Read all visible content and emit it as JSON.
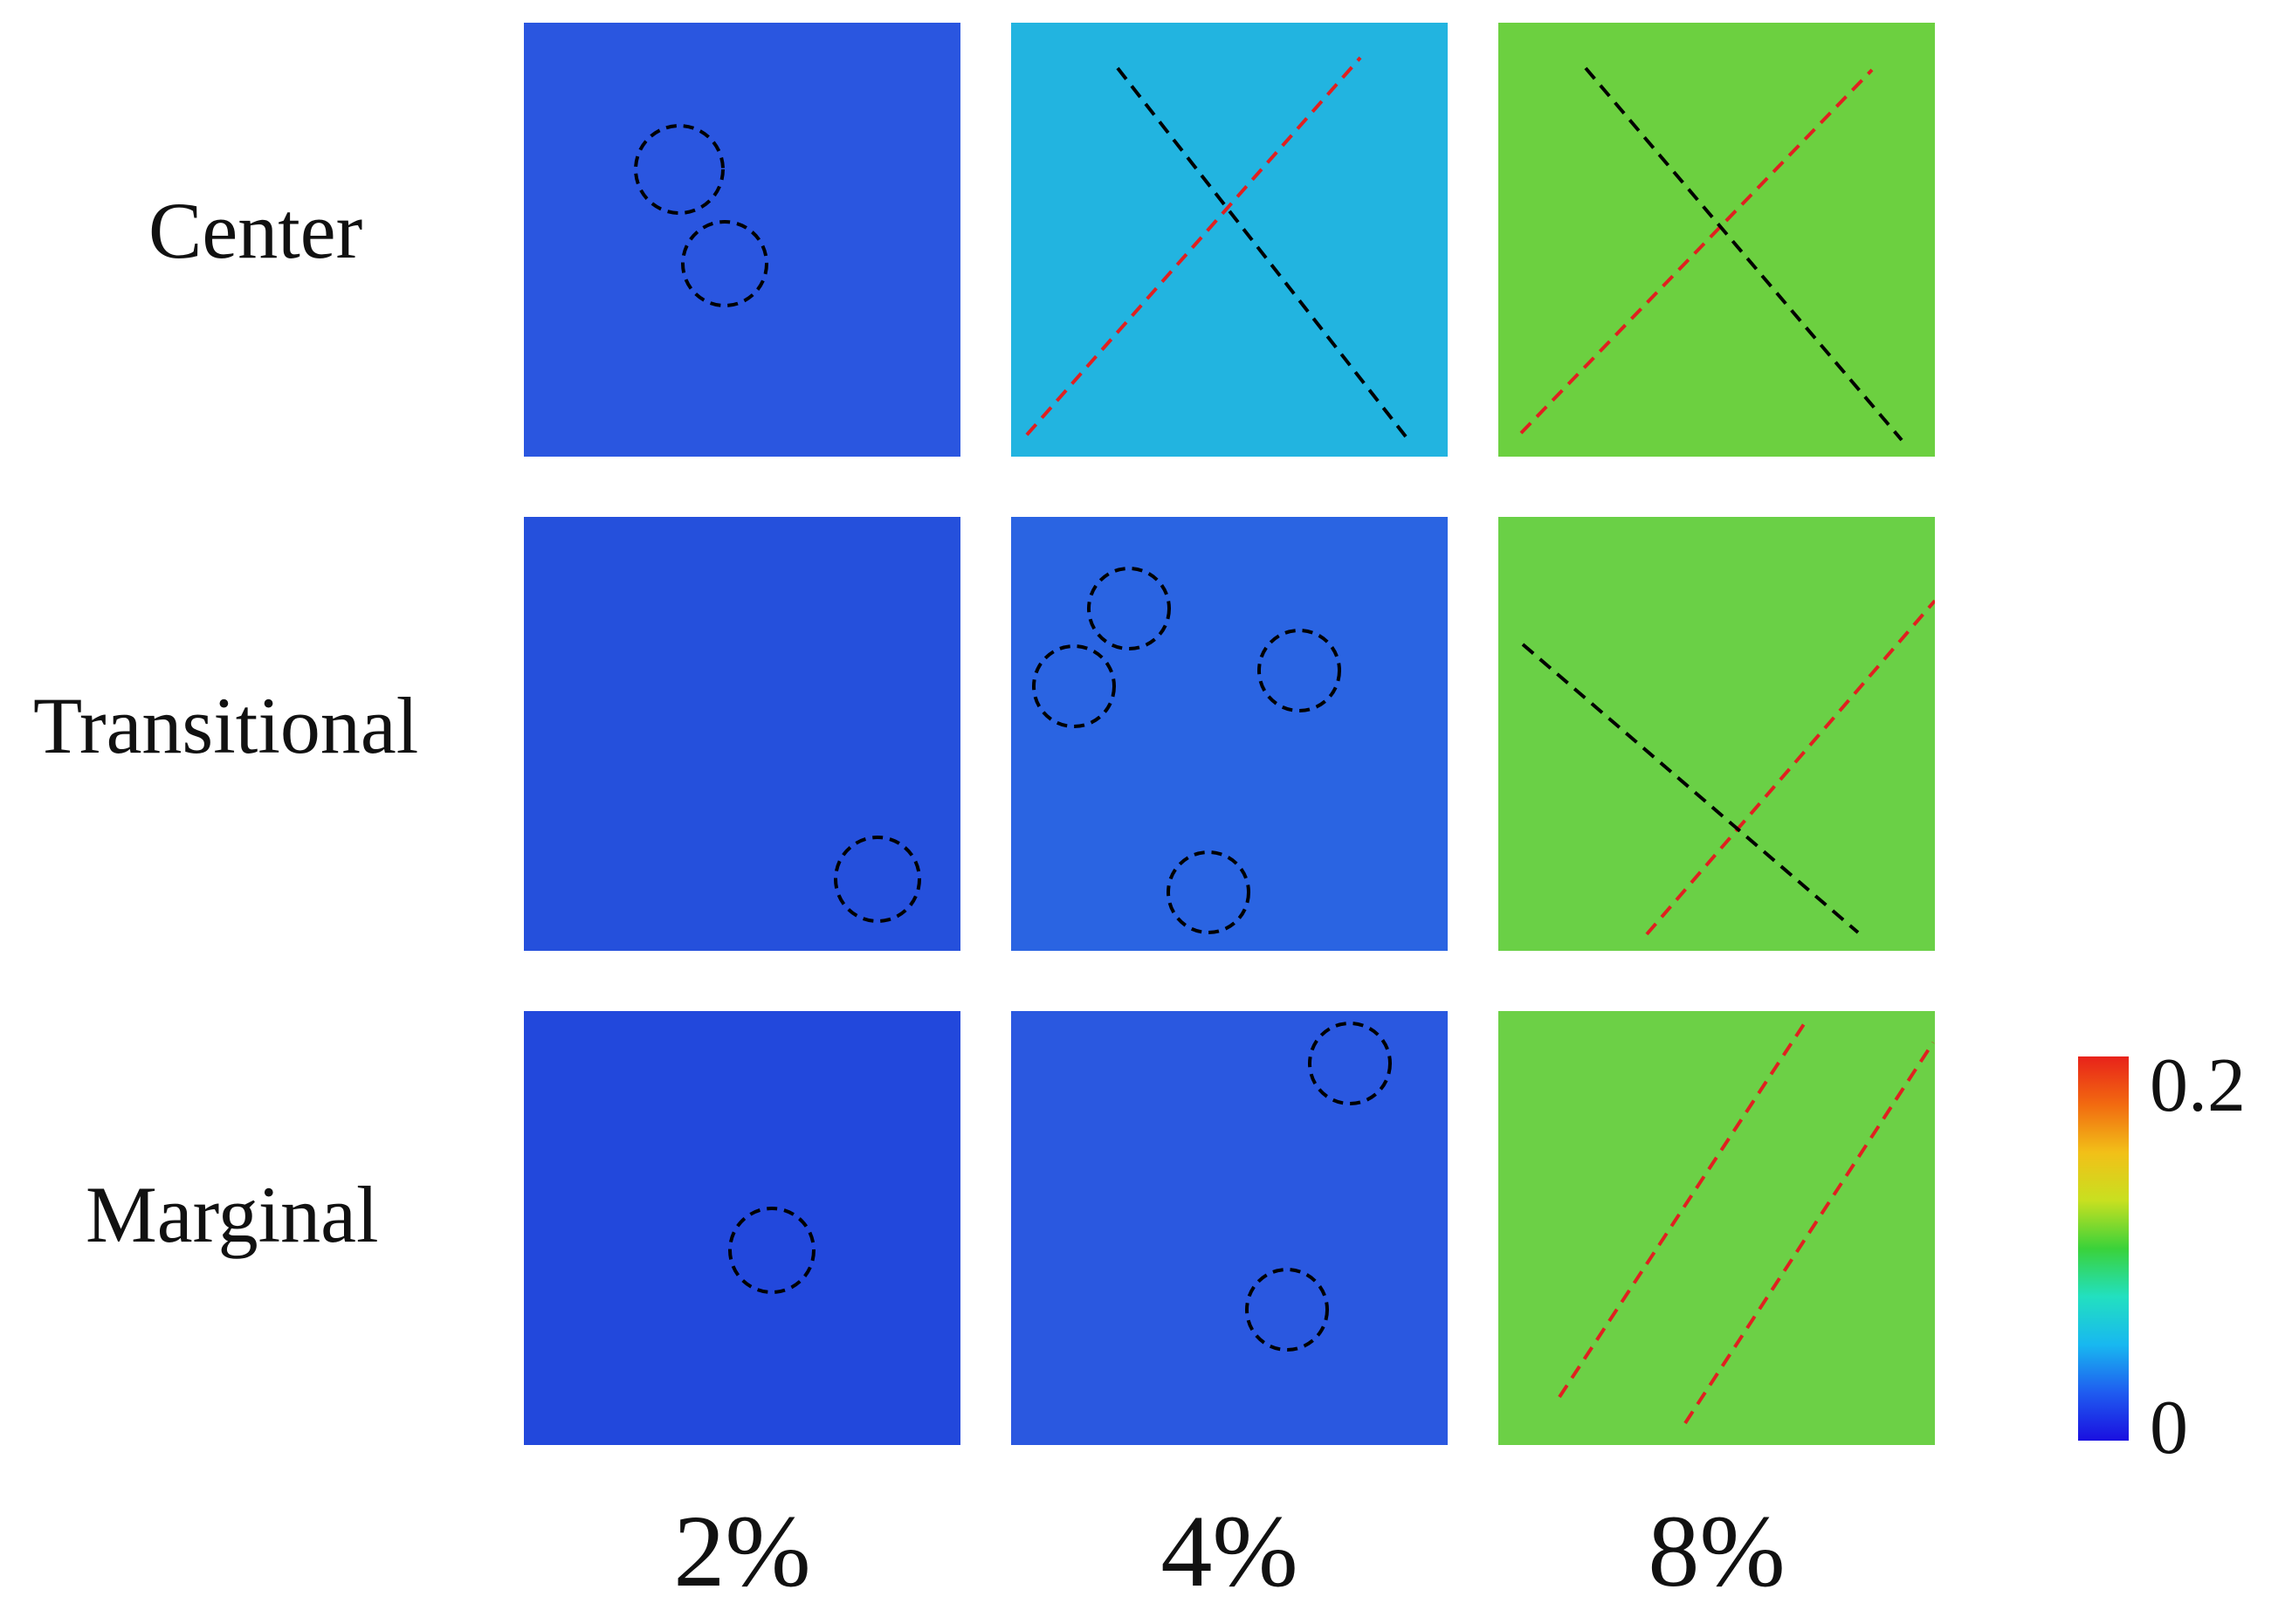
{
  "rows": [
    {
      "id": "center",
      "label": "Center"
    },
    {
      "id": "transitional",
      "label": "Transitional"
    },
    {
      "id": "marginal",
      "label": "Marginal"
    }
  ],
  "columns": [
    {
      "id": "2pct",
      "label": "2%"
    },
    {
      "id": "4pct",
      "label": "4%"
    },
    {
      "id": "8pct",
      "label": "8%"
    }
  ],
  "colorbar": {
    "max_label": "0.2",
    "min_label": "0",
    "colors": [
      "#1a0fe0",
      "#1f5cf0",
      "#18b8f0",
      "#22e0c0",
      "#3ad23a",
      "#c8e020",
      "#f2c018",
      "#f26a10",
      "#e8221a"
    ]
  }
}
